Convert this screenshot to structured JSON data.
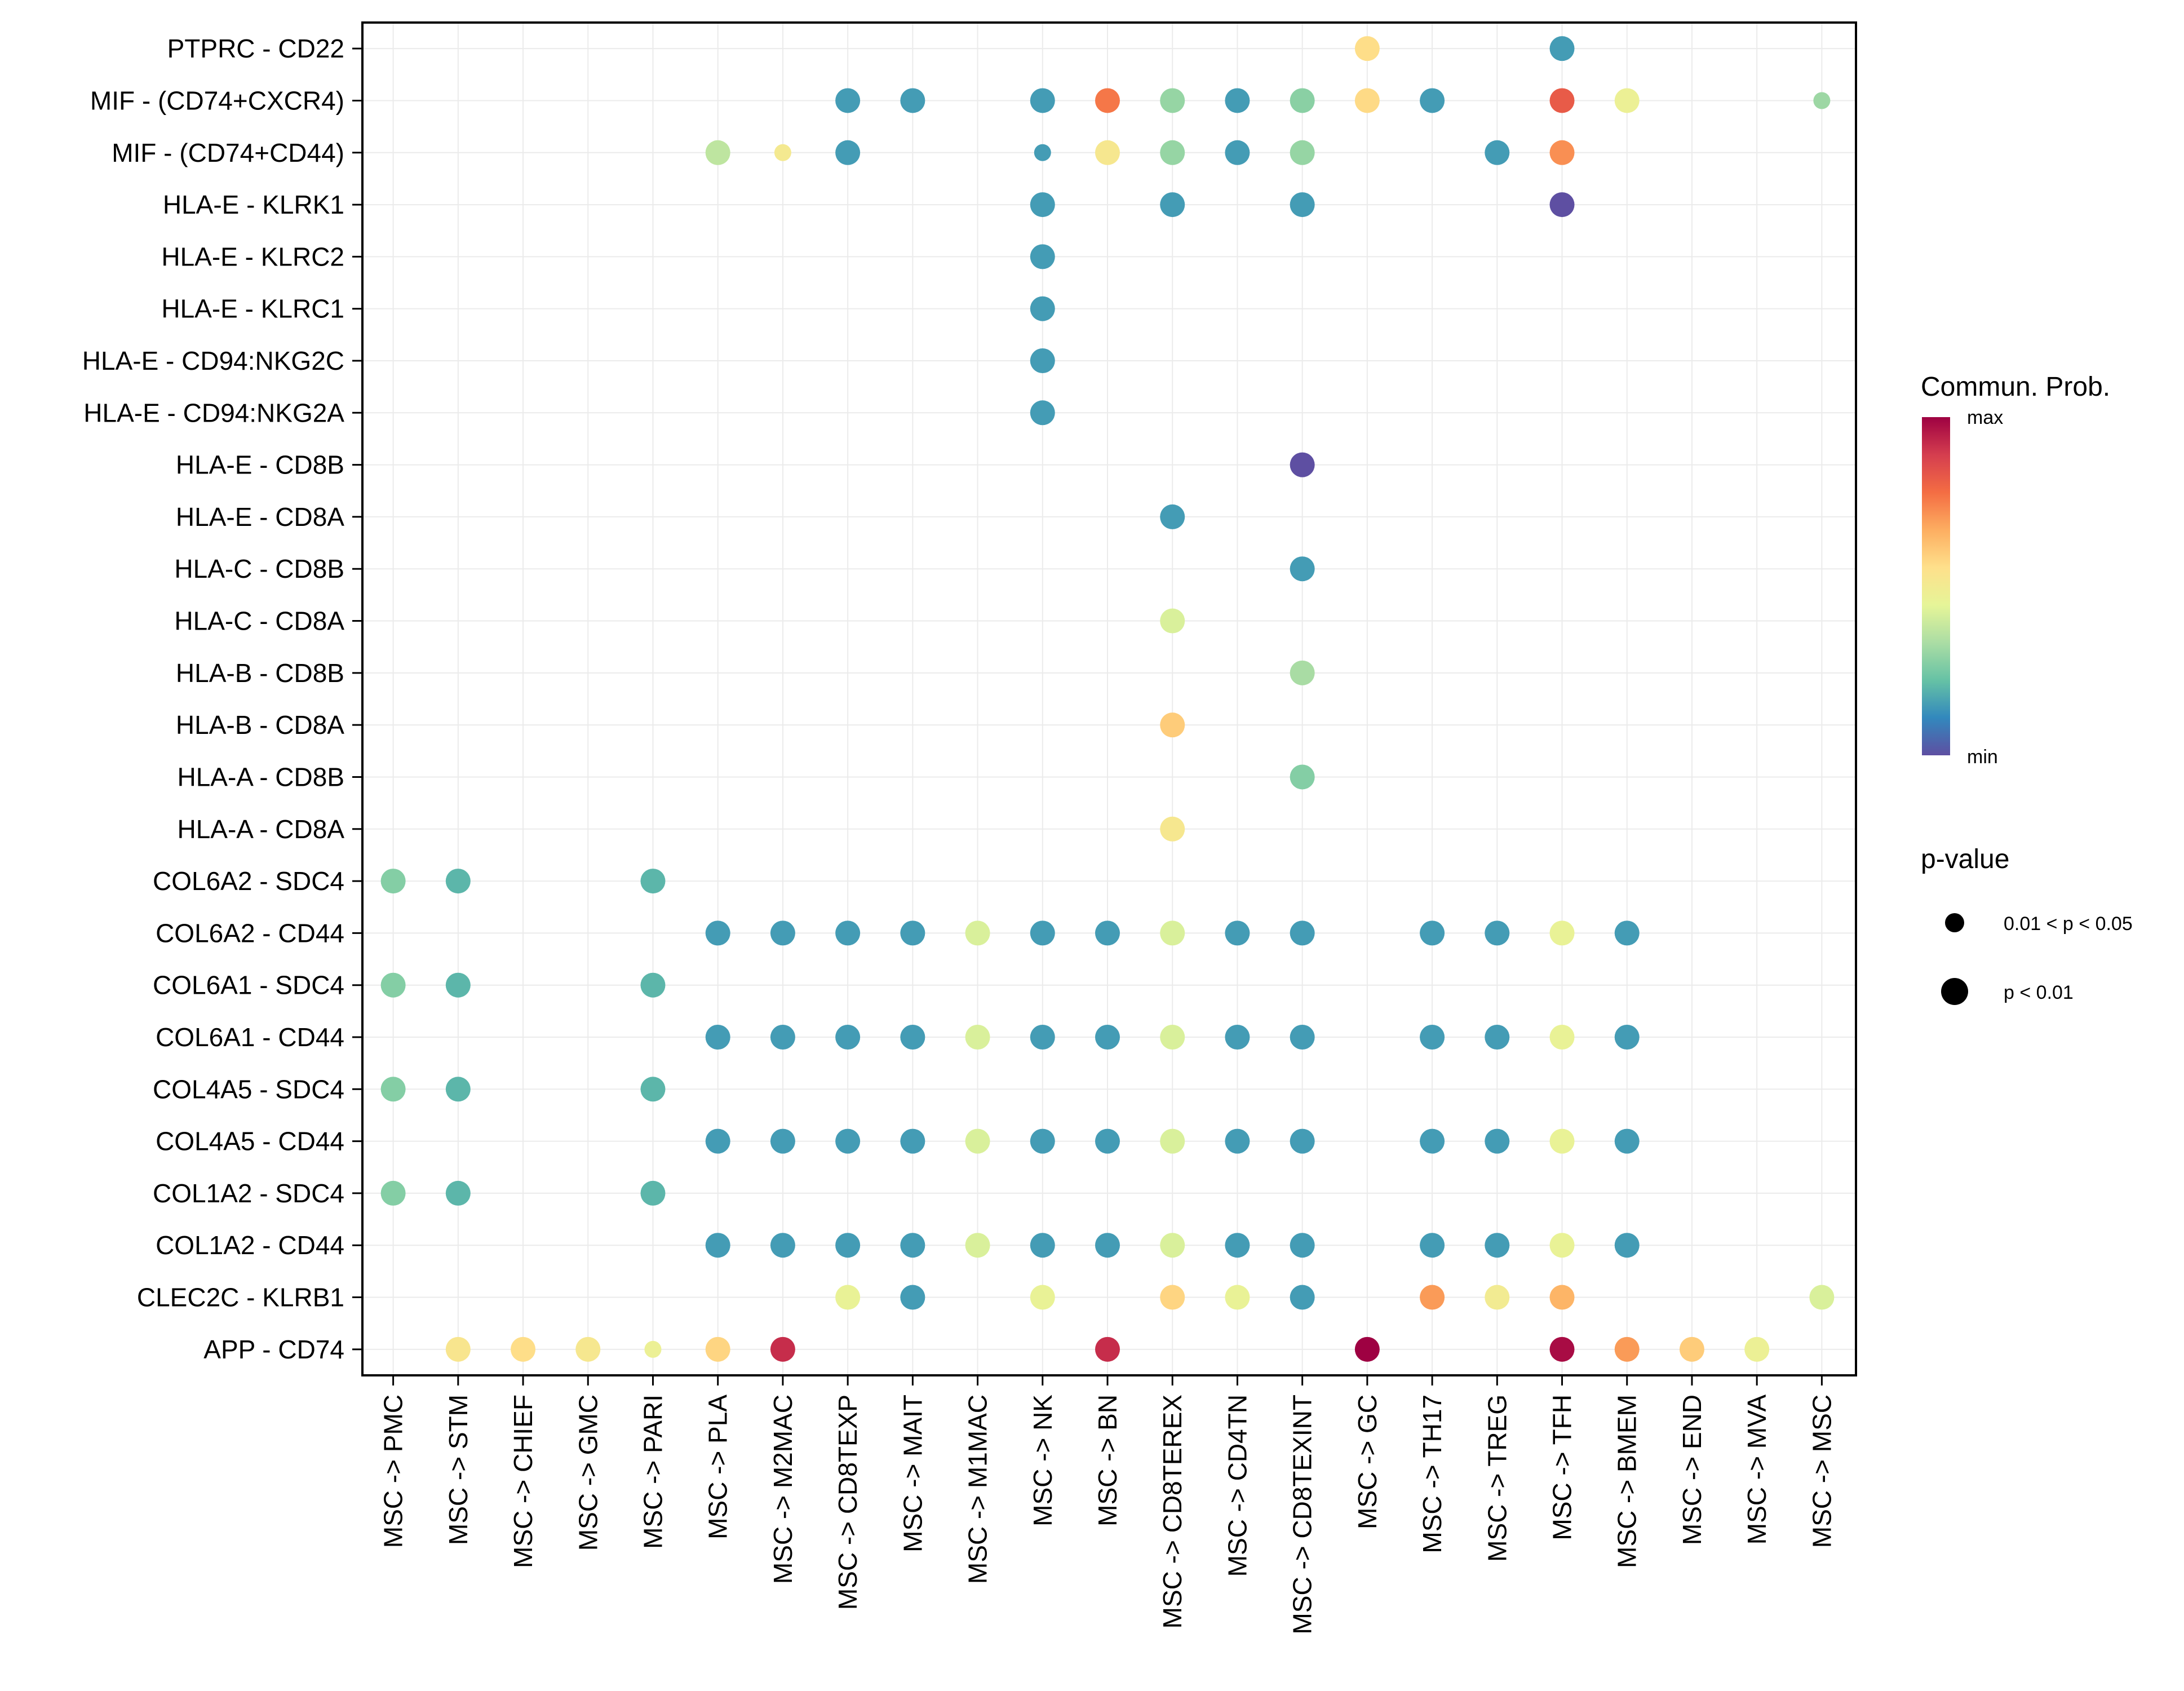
{
  "chart_data": {
    "type": "scatter",
    "subtype": "dot-matrix",
    "title": "",
    "xlabel": "",
    "ylabel": "",
    "grid": true,
    "x_categories": [
      "MSC -> PMC",
      "MSC -> STM",
      "MSC -> CHIEF",
      "MSC -> GMC",
      "MSC -> PARI",
      "MSC -> PLA",
      "MSC -> M2MAC",
      "MSC -> CD8TEXP",
      "MSC -> MAIT",
      "MSC -> M1MAC",
      "MSC -> NK",
      "MSC -> BN",
      "MSC -> CD8TEREX",
      "MSC -> CD4TN",
      "MSC -> CD8TEXINT",
      "MSC -> GC",
      "MSC -> TH17",
      "MSC -> TREG",
      "MSC -> TFH",
      "MSC -> BMEM",
      "MSC -> END",
      "MSC -> MVA",
      "MSC -> MSC"
    ],
    "y_categories": [
      "PTPRC - CD22",
      "MIF - (CD74+CXCR4)",
      "MIF - (CD74+CD44)",
      "HLA-E - KLRK1",
      "HLA-E - KLRC2",
      "HLA-E - KLRC1",
      "HLA-E - CD94:NKG2C",
      "HLA-E - CD94:NKG2A",
      "HLA-E - CD8B",
      "HLA-E - CD8A",
      "HLA-C - CD8B",
      "HLA-C - CD8A",
      "HLA-B - CD8B",
      "HLA-B - CD8A",
      "HLA-A - CD8B",
      "HLA-A - CD8A",
      "COL6A2 - SDC4",
      "COL6A2 - CD44",
      "COL6A1 - SDC4",
      "COL6A1 - CD44",
      "COL4A5 - SDC4",
      "COL4A5 - CD44",
      "COL1A2 - SDC4",
      "COL1A2 - CD44",
      "CLEC2C - KLRB1",
      "APP - CD74"
    ],
    "value_scale": {
      "name": "Commun. Prob.",
      "min_label": "min",
      "max_label": "max",
      "range": [
        0,
        1
      ],
      "palette": "Spectral (reversed)"
    },
    "size_legend": {
      "name": "p-value",
      "levels": [
        {
          "key": "mid",
          "label": "0.01 < p < 0.05"
        },
        {
          "key": "low",
          "label": "p < 0.01"
        }
      ]
    },
    "points": [
      {
        "y": "PTPRC - CD22",
        "x": "MSC -> GC",
        "prob": 0.56,
        "p": "low"
      },
      {
        "y": "PTPRC - CD22",
        "x": "MSC -> TFH",
        "prob": 0.15,
        "p": "low"
      },
      {
        "y": "MIF - (CD74+CXCR4)",
        "x": "MSC -> CD8TEXP",
        "prob": 0.15,
        "p": "low"
      },
      {
        "y": "MIF - (CD74+CXCR4)",
        "x": "MSC -> MAIT",
        "prob": 0.15,
        "p": "low"
      },
      {
        "y": "MIF - (CD74+CXCR4)",
        "x": "MSC -> NK",
        "prob": 0.15,
        "p": "low"
      },
      {
        "y": "MIF - (CD74+CXCR4)",
        "x": "MSC -> BN",
        "prob": 0.76,
        "p": "low"
      },
      {
        "y": "MIF - (CD74+CXCR4)",
        "x": "MSC -> CD8TEREX",
        "prob": 0.3,
        "p": "low"
      },
      {
        "y": "MIF - (CD74+CXCR4)",
        "x": "MSC -> CD4TN",
        "prob": 0.15,
        "p": "low"
      },
      {
        "y": "MIF - (CD74+CXCR4)",
        "x": "MSC -> CD8TEXINT",
        "prob": 0.28,
        "p": "low"
      },
      {
        "y": "MIF - (CD74+CXCR4)",
        "x": "MSC -> GC",
        "prob": 0.57,
        "p": "low"
      },
      {
        "y": "MIF - (CD74+CXCR4)",
        "x": "MSC -> TH17",
        "prob": 0.15,
        "p": "low"
      },
      {
        "y": "MIF - (CD74+CXCR4)",
        "x": "MSC -> TFH",
        "prob": 0.82,
        "p": "low"
      },
      {
        "y": "MIF - (CD74+CXCR4)",
        "x": "MSC -> BMEM",
        "prob": 0.47,
        "p": "low"
      },
      {
        "y": "MIF - (CD74+CXCR4)",
        "x": "MSC -> MSC",
        "prob": 0.31,
        "p": "mid"
      },
      {
        "y": "MIF - (CD74+CD44)",
        "x": "MSC -> PLA",
        "prob": 0.37,
        "p": "low"
      },
      {
        "y": "MIF - (CD74+CD44)",
        "x": "MSC -> M2MAC",
        "prob": 0.51,
        "p": "mid"
      },
      {
        "y": "MIF - (CD74+CD44)",
        "x": "MSC -> CD8TEXP",
        "prob": 0.15,
        "p": "low"
      },
      {
        "y": "MIF - (CD74+CD44)",
        "x": "MSC -> NK",
        "prob": 0.15,
        "p": "mid"
      },
      {
        "y": "MIF - (CD74+CD44)",
        "x": "MSC -> BN",
        "prob": 0.52,
        "p": "low"
      },
      {
        "y": "MIF - (CD74+CD44)",
        "x": "MSC -> CD8TEREX",
        "prob": 0.3,
        "p": "low"
      },
      {
        "y": "MIF - (CD74+CD44)",
        "x": "MSC -> CD4TN",
        "prob": 0.15,
        "p": "low"
      },
      {
        "y": "MIF - (CD74+CD44)",
        "x": "MSC -> CD8TEXINT",
        "prob": 0.3,
        "p": "low"
      },
      {
        "y": "MIF - (CD74+CD44)",
        "x": "MSC -> TREG",
        "prob": 0.15,
        "p": "low"
      },
      {
        "y": "MIF - (CD74+CD44)",
        "x": "MSC -> TFH",
        "prob": 0.72,
        "p": "low"
      },
      {
        "y": "HLA-E - KLRK1",
        "x": "MSC -> NK",
        "prob": 0.15,
        "p": "low"
      },
      {
        "y": "HLA-E - KLRK1",
        "x": "MSC -> CD8TEREX",
        "prob": 0.15,
        "p": "low"
      },
      {
        "y": "HLA-E - KLRK1",
        "x": "MSC -> CD8TEXINT",
        "prob": 0.15,
        "p": "low"
      },
      {
        "y": "HLA-E - KLRK1",
        "x": "MSC -> TFH",
        "prob": 0.0,
        "p": "low"
      },
      {
        "y": "HLA-E - KLRC2",
        "x": "MSC -> NK",
        "prob": 0.15,
        "p": "low"
      },
      {
        "y": "HLA-E - KLRC1",
        "x": "MSC -> NK",
        "prob": 0.15,
        "p": "low"
      },
      {
        "y": "HLA-E - CD94:NKG2C",
        "x": "MSC -> NK",
        "prob": 0.15,
        "p": "low"
      },
      {
        "y": "HLA-E - CD94:NKG2A",
        "x": "MSC -> NK",
        "prob": 0.15,
        "p": "low"
      },
      {
        "y": "HLA-E - CD8B",
        "x": "MSC -> CD8TEXINT",
        "prob": 0.0,
        "p": "low"
      },
      {
        "y": "HLA-E - CD8A",
        "x": "MSC -> CD8TEREX",
        "prob": 0.15,
        "p": "low"
      },
      {
        "y": "HLA-C - CD8B",
        "x": "MSC -> CD8TEXINT",
        "prob": 0.15,
        "p": "low"
      },
      {
        "y": "HLA-C - CD8A",
        "x": "MSC -> CD8TEREX",
        "prob": 0.42,
        "p": "low"
      },
      {
        "y": "HLA-B - CD8B",
        "x": "MSC -> CD8TEXINT",
        "prob": 0.33,
        "p": "low"
      },
      {
        "y": "HLA-B - CD8A",
        "x": "MSC -> CD8TEREX",
        "prob": 0.6,
        "p": "low"
      },
      {
        "y": "HLA-A - CD8B",
        "x": "MSC -> CD8TEXINT",
        "prob": 0.27,
        "p": "low"
      },
      {
        "y": "HLA-A - CD8A",
        "x": "MSC -> CD8TEREX",
        "prob": 0.52,
        "p": "low"
      },
      {
        "y": "COL6A2 - SDC4",
        "x": "MSC -> PMC",
        "prob": 0.27,
        "p": "low"
      },
      {
        "y": "COL6A2 - SDC4",
        "x": "MSC -> STM",
        "prob": 0.2,
        "p": "low"
      },
      {
        "y": "COL6A2 - SDC4",
        "x": "MSC -> PARI",
        "prob": 0.2,
        "p": "low"
      },
      {
        "y": "COL6A2 - CD44",
        "x": "MSC -> PLA",
        "prob": 0.15,
        "p": "low"
      },
      {
        "y": "COL6A2 - CD44",
        "x": "MSC -> M2MAC",
        "prob": 0.15,
        "p": "low"
      },
      {
        "y": "COL6A2 - CD44",
        "x": "MSC -> CD8TEXP",
        "prob": 0.15,
        "p": "low"
      },
      {
        "y": "COL6A2 - CD44",
        "x": "MSC -> MAIT",
        "prob": 0.15,
        "p": "low"
      },
      {
        "y": "COL6A2 - CD44",
        "x": "MSC -> M1MAC",
        "prob": 0.42,
        "p": "low"
      },
      {
        "y": "COL6A2 - CD44",
        "x": "MSC -> NK",
        "prob": 0.15,
        "p": "low"
      },
      {
        "y": "COL6A2 - CD44",
        "x": "MSC -> BN",
        "prob": 0.15,
        "p": "low"
      },
      {
        "y": "COL6A2 - CD44",
        "x": "MSC -> CD8TEREX",
        "prob": 0.42,
        "p": "low"
      },
      {
        "y": "COL6A2 - CD44",
        "x": "MSC -> CD4TN",
        "prob": 0.15,
        "p": "low"
      },
      {
        "y": "COL6A2 - CD44",
        "x": "MSC -> CD8TEXINT",
        "prob": 0.15,
        "p": "low"
      },
      {
        "y": "COL6A2 - CD44",
        "x": "MSC -> TH17",
        "prob": 0.15,
        "p": "low"
      },
      {
        "y": "COL6A2 - CD44",
        "x": "MSC -> TREG",
        "prob": 0.15,
        "p": "low"
      },
      {
        "y": "COL6A2 - CD44",
        "x": "MSC -> TFH",
        "prob": 0.46,
        "p": "low"
      },
      {
        "y": "COL6A2 - CD44",
        "x": "MSC -> BMEM",
        "prob": 0.15,
        "p": "low"
      },
      {
        "y": "COL6A1 - SDC4",
        "x": "MSC -> PMC",
        "prob": 0.27,
        "p": "low"
      },
      {
        "y": "COL6A1 - SDC4",
        "x": "MSC -> STM",
        "prob": 0.2,
        "p": "low"
      },
      {
        "y": "COL6A1 - SDC4",
        "x": "MSC -> PARI",
        "prob": 0.2,
        "p": "low"
      },
      {
        "y": "COL6A1 - CD44",
        "x": "MSC -> PLA",
        "prob": 0.15,
        "p": "low"
      },
      {
        "y": "COL6A1 - CD44",
        "x": "MSC -> M2MAC",
        "prob": 0.15,
        "p": "low"
      },
      {
        "y": "COL6A1 - CD44",
        "x": "MSC -> CD8TEXP",
        "prob": 0.15,
        "p": "low"
      },
      {
        "y": "COL6A1 - CD44",
        "x": "MSC -> MAIT",
        "prob": 0.15,
        "p": "low"
      },
      {
        "y": "COL6A1 - CD44",
        "x": "MSC -> M1MAC",
        "prob": 0.42,
        "p": "low"
      },
      {
        "y": "COL6A1 - CD44",
        "x": "MSC -> NK",
        "prob": 0.15,
        "p": "low"
      },
      {
        "y": "COL6A1 - CD44",
        "x": "MSC -> BN",
        "prob": 0.15,
        "p": "low"
      },
      {
        "y": "COL6A1 - CD44",
        "x": "MSC -> CD8TEREX",
        "prob": 0.42,
        "p": "low"
      },
      {
        "y": "COL6A1 - CD44",
        "x": "MSC -> CD4TN",
        "prob": 0.15,
        "p": "low"
      },
      {
        "y": "COL6A1 - CD44",
        "x": "MSC -> CD8TEXINT",
        "prob": 0.15,
        "p": "low"
      },
      {
        "y": "COL6A1 - CD44",
        "x": "MSC -> TH17",
        "prob": 0.15,
        "p": "low"
      },
      {
        "y": "COL6A1 - CD44",
        "x": "MSC -> TREG",
        "prob": 0.15,
        "p": "low"
      },
      {
        "y": "COL6A1 - CD44",
        "x": "MSC -> TFH",
        "prob": 0.46,
        "p": "low"
      },
      {
        "y": "COL6A1 - CD44",
        "x": "MSC -> BMEM",
        "prob": 0.15,
        "p": "low"
      },
      {
        "y": "COL4A5 - SDC4",
        "x": "MSC -> PMC",
        "prob": 0.27,
        "p": "low"
      },
      {
        "y": "COL4A5 - SDC4",
        "x": "MSC -> STM",
        "prob": 0.2,
        "p": "low"
      },
      {
        "y": "COL4A5 - SDC4",
        "x": "MSC -> PARI",
        "prob": 0.2,
        "p": "low"
      },
      {
        "y": "COL4A5 - CD44",
        "x": "MSC -> PLA",
        "prob": 0.15,
        "p": "low"
      },
      {
        "y": "COL4A5 - CD44",
        "x": "MSC -> M2MAC",
        "prob": 0.15,
        "p": "low"
      },
      {
        "y": "COL4A5 - CD44",
        "x": "MSC -> CD8TEXP",
        "prob": 0.15,
        "p": "low"
      },
      {
        "y": "COL4A5 - CD44",
        "x": "MSC -> MAIT",
        "prob": 0.15,
        "p": "low"
      },
      {
        "y": "COL4A5 - CD44",
        "x": "MSC -> M1MAC",
        "prob": 0.42,
        "p": "low"
      },
      {
        "y": "COL4A5 - CD44",
        "x": "MSC -> NK",
        "prob": 0.15,
        "p": "low"
      },
      {
        "y": "COL4A5 - CD44",
        "x": "MSC -> BN",
        "prob": 0.15,
        "p": "low"
      },
      {
        "y": "COL4A5 - CD44",
        "x": "MSC -> CD8TEREX",
        "prob": 0.42,
        "p": "low"
      },
      {
        "y": "COL4A5 - CD44",
        "x": "MSC -> CD4TN",
        "prob": 0.15,
        "p": "low"
      },
      {
        "y": "COL4A5 - CD44",
        "x": "MSC -> CD8TEXINT",
        "prob": 0.15,
        "p": "low"
      },
      {
        "y": "COL4A5 - CD44",
        "x": "MSC -> TH17",
        "prob": 0.15,
        "p": "low"
      },
      {
        "y": "COL4A5 - CD44",
        "x": "MSC -> TREG",
        "prob": 0.15,
        "p": "low"
      },
      {
        "y": "COL4A5 - CD44",
        "x": "MSC -> TFH",
        "prob": 0.46,
        "p": "low"
      },
      {
        "y": "COL4A5 - CD44",
        "x": "MSC -> BMEM",
        "prob": 0.15,
        "p": "low"
      },
      {
        "y": "COL1A2 - SDC4",
        "x": "MSC -> PMC",
        "prob": 0.27,
        "p": "low"
      },
      {
        "y": "COL1A2 - SDC4",
        "x": "MSC -> STM",
        "prob": 0.2,
        "p": "low"
      },
      {
        "y": "COL1A2 - SDC4",
        "x": "MSC -> PARI",
        "prob": 0.2,
        "p": "low"
      },
      {
        "y": "COL1A2 - CD44",
        "x": "MSC -> PLA",
        "prob": 0.15,
        "p": "low"
      },
      {
        "y": "COL1A2 - CD44",
        "x": "MSC -> M2MAC",
        "prob": 0.15,
        "p": "low"
      },
      {
        "y": "COL1A2 - CD44",
        "x": "MSC -> CD8TEXP",
        "prob": 0.15,
        "p": "low"
      },
      {
        "y": "COL1A2 - CD44",
        "x": "MSC -> MAIT",
        "prob": 0.15,
        "p": "low"
      },
      {
        "y": "COL1A2 - CD44",
        "x": "MSC -> M1MAC",
        "prob": 0.42,
        "p": "low"
      },
      {
        "y": "COL1A2 - CD44",
        "x": "MSC -> NK",
        "prob": 0.15,
        "p": "low"
      },
      {
        "y": "COL1A2 - CD44",
        "x": "MSC -> BN",
        "prob": 0.15,
        "p": "low"
      },
      {
        "y": "COL1A2 - CD44",
        "x": "MSC -> CD8TEREX",
        "prob": 0.42,
        "p": "low"
      },
      {
        "y": "COL1A2 - CD44",
        "x": "MSC -> CD4TN",
        "prob": 0.15,
        "p": "low"
      },
      {
        "y": "COL1A2 - CD44",
        "x": "MSC -> CD8TEXINT",
        "prob": 0.15,
        "p": "low"
      },
      {
        "y": "COL1A2 - CD44",
        "x": "MSC -> TH17",
        "prob": 0.15,
        "p": "low"
      },
      {
        "y": "COL1A2 - CD44",
        "x": "MSC -> TREG",
        "prob": 0.15,
        "p": "low"
      },
      {
        "y": "COL1A2 - CD44",
        "x": "MSC -> TFH",
        "prob": 0.46,
        "p": "low"
      },
      {
        "y": "COL1A2 - CD44",
        "x": "MSC -> BMEM",
        "prob": 0.15,
        "p": "low"
      },
      {
        "y": "CLEC2C - KLRB1",
        "x": "MSC -> CD8TEXP",
        "prob": 0.46,
        "p": "low"
      },
      {
        "y": "CLEC2C - KLRB1",
        "x": "MSC -> MAIT",
        "prob": 0.15,
        "p": "low"
      },
      {
        "y": "CLEC2C - KLRB1",
        "x": "MSC -> NK",
        "prob": 0.46,
        "p": "low"
      },
      {
        "y": "CLEC2C - KLRB1",
        "x": "MSC -> CD8TEREX",
        "prob": 0.58,
        "p": "low"
      },
      {
        "y": "CLEC2C - KLRB1",
        "x": "MSC -> CD4TN",
        "prob": 0.46,
        "p": "low"
      },
      {
        "y": "CLEC2C - KLRB1",
        "x": "MSC -> CD8TEXINT",
        "prob": 0.15,
        "p": "low"
      },
      {
        "y": "CLEC2C - KLRB1",
        "x": "MSC -> TH17",
        "prob": 0.7,
        "p": "low"
      },
      {
        "y": "CLEC2C - KLRB1",
        "x": "MSC -> TREG",
        "prob": 0.5,
        "p": "low"
      },
      {
        "y": "CLEC2C - KLRB1",
        "x": "MSC -> TFH",
        "prob": 0.65,
        "p": "low"
      },
      {
        "y": "CLEC2C - KLRB1",
        "x": "MSC -> MSC",
        "prob": 0.42,
        "p": "low"
      },
      {
        "y": "APP - CD74",
        "x": "MSC -> STM",
        "prob": 0.53,
        "p": "low"
      },
      {
        "y": "APP - CD74",
        "x": "MSC -> CHIEF",
        "prob": 0.56,
        "p": "low"
      },
      {
        "y": "APP - CD74",
        "x": "MSC -> GMC",
        "prob": 0.52,
        "p": "low"
      },
      {
        "y": "APP - CD74",
        "x": "MSC -> PARI",
        "prob": 0.47,
        "p": "mid"
      },
      {
        "y": "APP - CD74",
        "x": "MSC -> PLA",
        "prob": 0.58,
        "p": "low"
      },
      {
        "y": "APP - CD74",
        "x": "MSC -> M2MAC",
        "prob": 0.92,
        "p": "low"
      },
      {
        "y": "APP - CD74",
        "x": "MSC -> BN",
        "prob": 0.92,
        "p": "low"
      },
      {
        "y": "APP - CD74",
        "x": "MSC -> GC",
        "prob": 1.0,
        "p": "low"
      },
      {
        "y": "APP - CD74",
        "x": "MSC -> TFH",
        "prob": 0.98,
        "p": "low"
      },
      {
        "y": "APP - CD74",
        "x": "MSC -> BMEM",
        "prob": 0.7,
        "p": "low"
      },
      {
        "y": "APP - CD74",
        "x": "MSC -> END",
        "prob": 0.6,
        "p": "low"
      },
      {
        "y": "APP - CD74",
        "x": "MSC -> MVA",
        "prob": 0.47,
        "p": "low"
      }
    ]
  },
  "palette": [
    "#5e4fa2",
    "#3288bd",
    "#66c2a5",
    "#abdda4",
    "#e6f598",
    "#fee08b",
    "#fdae61",
    "#f46d43",
    "#d53e4f",
    "#9e0142"
  ],
  "legend": {
    "color_title": "Commun. Prob.",
    "color_max": "max",
    "color_min": "min",
    "size_title": "p-value",
    "size_items": [
      "0.01 < p < 0.05",
      "p < 0.01"
    ]
  }
}
